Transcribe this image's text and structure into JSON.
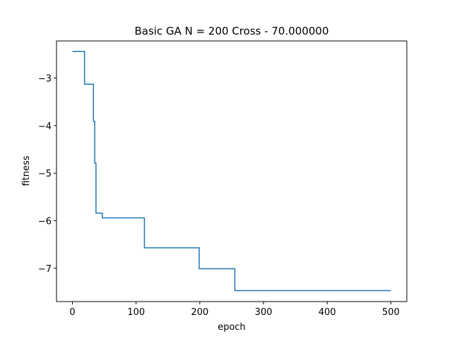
{
  "chart_data": {
    "type": "line",
    "title": "Basic GA N = 200 Cross - 70.000000",
    "xlabel": "epoch",
    "ylabel": "fitness",
    "xlim": [
      -25,
      525
    ],
    "ylim": [
      -7.7,
      -2.22
    ],
    "xticks": [
      0,
      100,
      200,
      300,
      400,
      500
    ],
    "xtick_labels": [
      "0",
      "100",
      "200",
      "300",
      "400",
      "500"
    ],
    "yticks": [
      -3,
      -4,
      -5,
      -6,
      -7
    ],
    "ytick_labels": [
      "−3",
      "−4",
      "−5",
      "−6",
      "−7"
    ],
    "grid": false,
    "legend": "none",
    "series": [
      {
        "color": "#1f77b4",
        "x": [
          0,
          19,
          19,
          33,
          33,
          35,
          35,
          37,
          37,
          47,
          47,
          55,
          55,
          113,
          113,
          199,
          199,
          255,
          255,
          500
        ],
        "y": [
          -2.44,
          -2.44,
          -3.13,
          -3.13,
          -3.91,
          -3.91,
          -4.79,
          -4.79,
          -5.84,
          -5.84,
          -5.94,
          -5.94,
          -5.94,
          -5.94,
          -6.57,
          -6.57,
          -7.01,
          -7.01,
          -7.47,
          -7.47
        ]
      }
    ]
  }
}
